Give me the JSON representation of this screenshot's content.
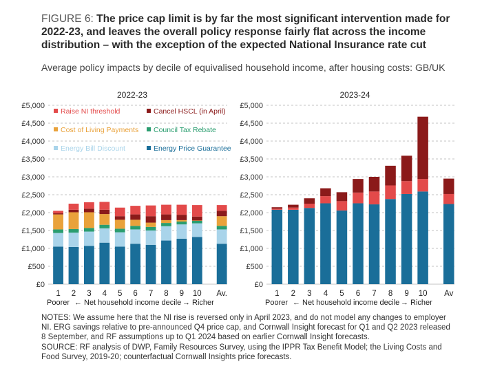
{
  "figure": {
    "label": "FIGURE 6:",
    "title": "The price cap limit is by far the most significant intervention made for 2022-23, and leaves the overall policy response fairly flat across the income distribution – with the exception of the expected National Insurance rate cut",
    "subtitle": "Average policy impacts by decile of equivalised household income, after housing costs: GB/UK"
  },
  "notes": {
    "notes_text": "NOTES: We assume here that the NI rise is reversed only in April 2023, and do not model any changes to employer NI. ERG savings relative to pre-announced Q4 price cap, and Cornwall Insight forecast for Q1 and Q2 2023 released 8 September, and RF assumptions up to Q1 2024 based on earlier Cornwall Insight forecasts.",
    "source_text": "SOURCE: RF analysis of DWP, Family Resources Survey, using the IPPR Tax Benefit Model; the Living Costs and Food Survey, 2019-20; counterfactual Cornwall Insights price forecasts."
  },
  "colors": {
    "energy_price_guarantee": "#1a6e99",
    "energy_bill_discount": "#a9d4ea",
    "council_tax_rebate": "#2a9d6f",
    "cost_of_living_payments": "#e9a23b",
    "cancel_hscl": "#8b1a1a",
    "raise_ni_threshold": "#e34a4a"
  },
  "chart_data": [
    {
      "type": "bar",
      "stacked": true,
      "title": "2022-23",
      "categories": [
        "1",
        "2",
        "3",
        "4",
        "5",
        "6",
        "7",
        "8",
        "9",
        "10",
        "Av."
      ],
      "x_axis_caption": {
        "left": "Poorer",
        "middle": "Net household income decile",
        "right": "Richer",
        "arrow_left": "←",
        "arrow_right": "→"
      },
      "yticks": [
        "£5,000",
        "£4,500",
        "£4,000",
        "£3,500",
        "£3,000",
        "£2,500",
        "£2,000",
        "£1,500",
        "£1,000",
        "£500",
        "£0"
      ],
      "ylim": [
        0,
        5000
      ],
      "grid": "dashed horizontal",
      "legend_position": "top-left, inside plot",
      "series": [
        {
          "name": "Energy Price Guarantee",
          "key": "energy_price_guarantee",
          "values": [
            1050,
            1040,
            1070,
            1160,
            1050,
            1130,
            1100,
            1220,
            1270,
            1320,
            1130
          ]
        },
        {
          "name": "Energy Bill Discount",
          "key": "energy_bill_discount",
          "values": [
            380,
            400,
            400,
            400,
            400,
            400,
            400,
            400,
            400,
            380,
            400
          ]
        },
        {
          "name": "Council Tax Rebate",
          "key": "council_tax_rebate",
          "values": [
            100,
            100,
            100,
            100,
            100,
            100,
            100,
            90,
            80,
            70,
            100
          ]
        },
        {
          "name": "Cost of Living Payments",
          "key": "cost_of_living_payments",
          "values": [
            420,
            470,
            440,
            300,
            250,
            170,
            120,
            80,
            40,
            10,
            270
          ]
        },
        {
          "name": "Cancel HSCL (in April)",
          "key": "cancel_hscl",
          "values": [
            30,
            70,
            100,
            120,
            100,
            150,
            180,
            160,
            150,
            110,
            150
          ]
        },
        {
          "name": "Raise NI threshold",
          "key": "raise_ni_threshold",
          "values": [
            70,
            170,
            180,
            220,
            240,
            240,
            300,
            270,
            280,
            320,
            160
          ]
        }
      ]
    },
    {
      "type": "bar",
      "stacked": true,
      "title": "2023-24",
      "categories": [
        "1",
        "2",
        "3",
        "4",
        "5",
        "6",
        "7",
        "8",
        "9",
        "10",
        "Av"
      ],
      "x_axis_caption": {
        "left": "Poorer",
        "middle": "Net household income decile",
        "right": "Richer",
        "arrow_left": "←",
        "arrow_right": "→"
      },
      "yticks": [
        "£5,000",
        "£4,500",
        "£4,000",
        "£3,500",
        "£3,000",
        "£2,500",
        "£2,000",
        "£1,500",
        "£1,000",
        "£500",
        "£0"
      ],
      "ylim": [
        0,
        5000
      ],
      "grid": "dashed horizontal",
      "series": [
        {
          "name": "Energy Price Guarantee",
          "key": "energy_price_guarantee",
          "values": [
            2080,
            2080,
            2130,
            2260,
            2060,
            2260,
            2230,
            2380,
            2520,
            2590,
            2240
          ]
        },
        {
          "name": "Energy Bill Discount",
          "key": "energy_bill_discount",
          "values": [
            0,
            0,
            0,
            0,
            0,
            0,
            0,
            0,
            0,
            0,
            0
          ]
        },
        {
          "name": "Council Tax Rebate",
          "key": "council_tax_rebate",
          "values": [
            0,
            0,
            0,
            0,
            0,
            0,
            0,
            0,
            0,
            0,
            0
          ]
        },
        {
          "name": "Cost of Living Payments",
          "key": "cost_of_living_payments",
          "values": [
            0,
            0,
            0,
            0,
            0,
            0,
            0,
            0,
            0,
            0,
            0
          ]
        },
        {
          "name": "Raise NI threshold",
          "key": "raise_ni_threshold",
          "values": [
            30,
            60,
            120,
            200,
            260,
            300,
            360,
            380,
            360,
            350,
            280
          ]
        },
        {
          "name": "Cancel HSCL (in April)",
          "key": "cancel_hscl",
          "values": [
            40,
            80,
            150,
            220,
            250,
            380,
            410,
            550,
            710,
            1740,
            430
          ]
        }
      ]
    }
  ]
}
